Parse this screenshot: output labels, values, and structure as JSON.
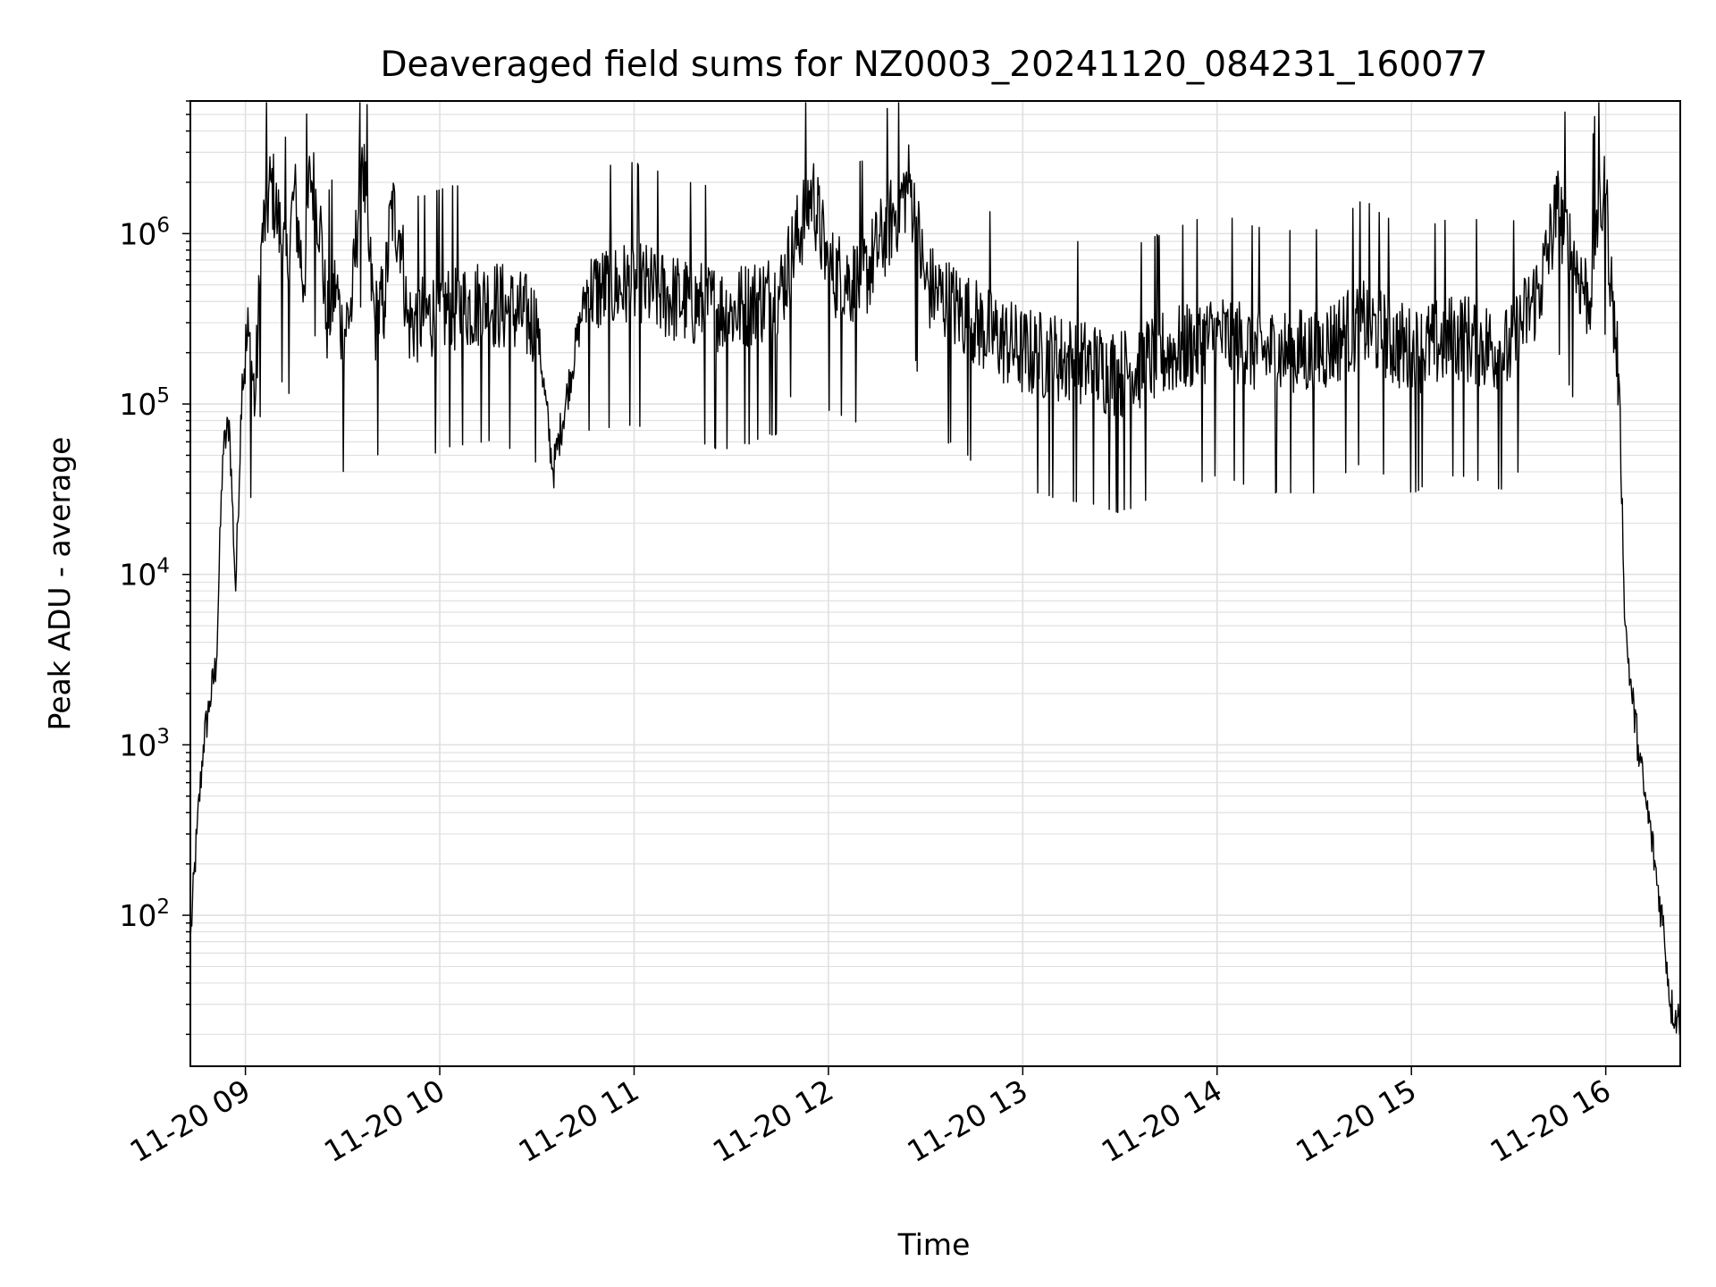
{
  "chart_data": {
    "type": "line",
    "title": "Deaveraged field sums for NZ0003_20241120_084231_160077",
    "xlabel": "Time",
    "ylabel": "Peak ADU - average",
    "x_range": [
      "2024-11-20 08:43",
      "2024-11-20 16:23"
    ],
    "x_ticks": [
      "11-20 09",
      "11-20 10",
      "11-20 11",
      "11-20 12",
      "11-20 13",
      "11-20 14",
      "11-20 15",
      "11-20 16"
    ],
    "y_scale": "log",
    "ylim": [
      13,
      6000000
    ],
    "y_ticks": [
      {
        "value": 100,
        "base": "10",
        "exp": "2"
      },
      {
        "value": 1000,
        "base": "10",
        "exp": "3"
      },
      {
        "value": 10000,
        "base": "10",
        "exp": "4"
      },
      {
        "value": 100000,
        "base": "10",
        "exp": "5"
      },
      {
        "value": 1000000,
        "base": "10",
        "exp": "6"
      }
    ],
    "grid": true,
    "line_color": "#000000",
    "grid_color": "#e0e0e0",
    "series": [
      {
        "x": [
          "08:43",
          "08:45",
          "08:47",
          "08:49",
          "08:51",
          "08:53",
          "08:55",
          "08:57",
          "08:59",
          "09:01",
          "09:03",
          "09:05",
          "09:08",
          "09:10",
          "09:13",
          "09:15",
          "09:18",
          "09:20",
          "09:23",
          "09:25",
          "09:28",
          "09:30",
          "09:33",
          "09:36",
          "09:38",
          "09:40",
          "09:43",
          "09:45",
          "09:48",
          "09:50",
          "10:00",
          "10:15",
          "10:30",
          "10:35",
          "10:45",
          "11:00",
          "11:15",
          "11:30",
          "11:45",
          "11:55",
          "12:00",
          "12:10",
          "12:25",
          "12:30",
          "12:45",
          "13:00",
          "13:15",
          "13:30",
          "13:45",
          "14:00",
          "14:15",
          "14:30",
          "14:45",
          "15:00",
          "15:15",
          "15:30",
          "15:40",
          "15:45",
          "15:50",
          "15:55",
          "15:57",
          "16:00",
          "16:02",
          "16:04",
          "16:06",
          "16:08",
          "16:10",
          "16:12",
          "16:14",
          "16:16",
          "16:18",
          "16:20",
          "16:22",
          "16:23"
        ],
        "y": [
          70,
          300,
          1000,
          1800,
          3000,
          50000,
          80000,
          8000,
          150000,
          250000,
          100000,
          900000,
          2000000,
          1200000,
          600000,
          1800000,
          500000,
          2300000,
          1200000,
          300000,
          500000,
          250000,
          400000,
          3200000,
          800000,
          300000,
          400000,
          1400000,
          1000000,
          300000,
          350000,
          400000,
          300000,
          40000,
          450000,
          500000,
          400000,
          350000,
          450000,
          1800000,
          600000,
          500000,
          2000000,
          500000,
          300000,
          200000,
          180000,
          150000,
          200000,
          250000,
          200000,
          200000,
          300000,
          200000,
          250000,
          200000,
          500000,
          1400000,
          700000,
          400000,
          1200000,
          1700000,
          400000,
          150000,
          5000,
          2000,
          1000,
          500,
          300,
          150,
          80,
          30,
          25,
          25
        ]
      }
    ]
  }
}
